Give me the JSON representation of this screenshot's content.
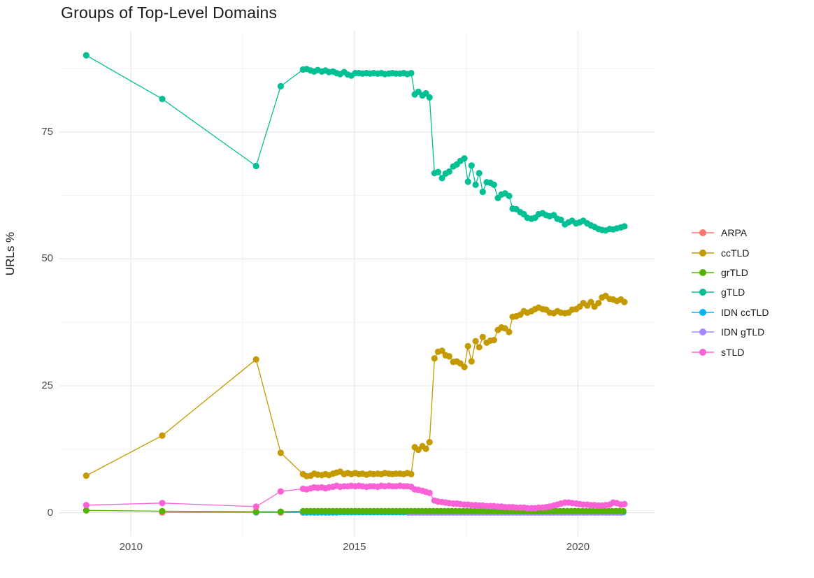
{
  "chart_data": {
    "type": "line",
    "title": "Groups of Top-Level Domains",
    "xlabel": "",
    "ylabel": "URLs %",
    "xlim": [
      2008.4,
      2021.73
    ],
    "ylim": [
      -4.6,
      94.8
    ],
    "grid": "major+minor",
    "grid_major_color": "#e5e5e5",
    "grid_minor_color": "#f2f2f2",
    "tick_label_color": "#4d4d4d",
    "legend_position": "right",
    "x_ticks": {
      "major": [
        2010,
        2015,
        2020
      ],
      "minor": [
        2012.5,
        2017.5
      ],
      "labels": [
        "2010",
        "2015",
        "2020"
      ]
    },
    "y_ticks": {
      "major": [
        0,
        25,
        50,
        75
      ],
      "minor": [
        12.5,
        37.5,
        62.5,
        87.5
      ],
      "labels": [
        "0",
        "25",
        "50",
        "75"
      ]
    },
    "draw_order": [
      "ARPA",
      "IDN ccTLD",
      "IDN gTLD",
      "grTLD",
      "ccTLD",
      "gTLD",
      "sTLD"
    ],
    "series": [
      {
        "name": "ARPA",
        "color": "#F8766D",
        "points": [
          [
            2010.7,
            0.05
          ],
          [
            2012.8,
            0.05
          ],
          [
            2013.35,
            0.04
          ]
        ],
        "flat": {
          "from": 2013.85,
          "to": 2014.6,
          "step": 0.0833,
          "value": 0.03
        }
      },
      {
        "name": "ccTLD",
        "color": "#C49A00",
        "points": [
          [
            2009,
            7.3
          ],
          [
            2010.7,
            15.2
          ],
          [
            2012.8,
            30.2
          ],
          [
            2013.35,
            11.8
          ],
          [
            2013.85,
            7.6
          ],
          [
            2013.93,
            7.2
          ],
          [
            2014.02,
            7.3
          ],
          [
            2014.1,
            7.7
          ],
          [
            2014.18,
            7.5
          ],
          [
            2014.27,
            7.4
          ],
          [
            2014.35,
            7.6
          ],
          [
            2014.43,
            7.4
          ],
          [
            2014.52,
            7.7
          ],
          [
            2014.6,
            7.9
          ],
          [
            2014.68,
            8.1
          ],
          [
            2014.77,
            7.6
          ],
          [
            2014.85,
            7.8
          ],
          [
            2014.93,
            7.6
          ],
          [
            2015.02,
            7.8
          ],
          [
            2015.1,
            7.6
          ],
          [
            2015.18,
            7.7
          ],
          [
            2015.27,
            7.5
          ],
          [
            2015.35,
            7.7
          ],
          [
            2015.43,
            7.6
          ],
          [
            2015.52,
            7.7
          ],
          [
            2015.6,
            7.6
          ],
          [
            2015.68,
            7.8
          ],
          [
            2015.77,
            7.7
          ],
          [
            2015.85,
            7.6
          ],
          [
            2015.93,
            7.7
          ],
          [
            2016.02,
            7.7
          ],
          [
            2016.1,
            7.6
          ],
          [
            2016.18,
            7.8
          ],
          [
            2016.27,
            7.6
          ],
          [
            2016.35,
            12.9
          ],
          [
            2016.43,
            12.4
          ],
          [
            2016.52,
            13.1
          ],
          [
            2016.6,
            12.6
          ],
          [
            2016.68,
            13.9
          ],
          [
            2016.79,
            30.4
          ],
          [
            2016.87,
            31.7
          ],
          [
            2016.96,
            31.9
          ],
          [
            2017.04,
            31
          ],
          [
            2017.12,
            30.8
          ],
          [
            2017.21,
            29.7
          ],
          [
            2017.29,
            29.8
          ],
          [
            2017.37,
            29.4
          ],
          [
            2017.46,
            28.7
          ],
          [
            2017.54,
            32.8
          ],
          [
            2017.62,
            29.8
          ],
          [
            2017.71,
            33.8
          ],
          [
            2017.79,
            32.6
          ],
          [
            2017.87,
            34.6
          ],
          [
            2017.96,
            33.5
          ],
          [
            2018.04,
            33.9
          ],
          [
            2018.12,
            34
          ],
          [
            2018.21,
            36
          ],
          [
            2018.29,
            36.5
          ],
          [
            2018.37,
            36.3
          ],
          [
            2018.46,
            35.6
          ],
          [
            2018.54,
            38.6
          ],
          [
            2018.62,
            38.7
          ],
          [
            2018.71,
            39
          ],
          [
            2018.79,
            39.7
          ],
          [
            2018.87,
            39.4
          ],
          [
            2018.96,
            39.7
          ],
          [
            2019.04,
            40.1
          ],
          [
            2019.12,
            40.4
          ],
          [
            2019.21,
            40.1
          ],
          [
            2019.29,
            40
          ],
          [
            2019.37,
            39.4
          ],
          [
            2019.46,
            39.3
          ],
          [
            2019.54,
            39.7
          ],
          [
            2019.62,
            39.4
          ],
          [
            2019.71,
            39.3
          ],
          [
            2019.79,
            39.4
          ],
          [
            2019.87,
            40
          ],
          [
            2019.96,
            40.1
          ],
          [
            2020.04,
            40.6
          ],
          [
            2020.12,
            41.3
          ],
          [
            2020.21,
            40.8
          ],
          [
            2020.29,
            41.5
          ],
          [
            2020.37,
            40.6
          ],
          [
            2020.46,
            41.3
          ],
          [
            2020.54,
            42.4
          ],
          [
            2020.62,
            42.7
          ],
          [
            2020.71,
            42.1
          ],
          [
            2020.79,
            42
          ],
          [
            2020.87,
            41.7
          ],
          [
            2020.96,
            42
          ],
          [
            2021.04,
            41.5
          ]
        ]
      },
      {
        "name": "grTLD",
        "color": "#53B400",
        "points": [
          [
            2009,
            0.45
          ],
          [
            2010.7,
            0.3
          ],
          [
            2012.8,
            0.2
          ],
          [
            2013.35,
            0.2
          ]
        ],
        "flat": {
          "from": 2013.85,
          "to": 2021.04,
          "step": 0.0833,
          "value": 0.3
        }
      },
      {
        "name": "gTLD",
        "color": "#00C094",
        "points": [
          [
            2009,
            90.1
          ],
          [
            2010.7,
            81.5
          ],
          [
            2012.8,
            68.3
          ],
          [
            2013.35,
            84
          ],
          [
            2013.85,
            87.3
          ],
          [
            2013.93,
            87.4
          ],
          [
            2014.02,
            87.1
          ],
          [
            2014.1,
            86.9
          ],
          [
            2014.18,
            87.2
          ],
          [
            2014.27,
            86.9
          ],
          [
            2014.35,
            87.1
          ],
          [
            2014.43,
            86.8
          ],
          [
            2014.52,
            86.9
          ],
          [
            2014.6,
            86.6
          ],
          [
            2014.68,
            86.4
          ],
          [
            2014.77,
            86.8
          ],
          [
            2014.85,
            86.3
          ],
          [
            2014.93,
            86.1
          ],
          [
            2015.02,
            86.6
          ],
          [
            2015.1,
            86.6
          ],
          [
            2015.18,
            86.5
          ],
          [
            2015.27,
            86.6
          ],
          [
            2015.35,
            86.5
          ],
          [
            2015.43,
            86.6
          ],
          [
            2015.52,
            86.5
          ],
          [
            2015.6,
            86.6
          ],
          [
            2015.68,
            86.4
          ],
          [
            2015.77,
            86.5
          ],
          [
            2015.85,
            86.6
          ],
          [
            2015.93,
            86.5
          ],
          [
            2016.02,
            86.5
          ],
          [
            2016.1,
            86.6
          ],
          [
            2016.18,
            86.4
          ],
          [
            2016.27,
            86.6
          ],
          [
            2016.35,
            82.4
          ],
          [
            2016.43,
            82.9
          ],
          [
            2016.52,
            82.2
          ],
          [
            2016.6,
            82.6
          ],
          [
            2016.68,
            81.8
          ],
          [
            2016.79,
            66.9
          ],
          [
            2016.87,
            67.1
          ],
          [
            2016.96,
            65.9
          ],
          [
            2017.04,
            66.8
          ],
          [
            2017.12,
            67.2
          ],
          [
            2017.21,
            68.2
          ],
          [
            2017.29,
            68.6
          ],
          [
            2017.37,
            69.3
          ],
          [
            2017.46,
            69.8
          ],
          [
            2017.54,
            65.2
          ],
          [
            2017.62,
            68.4
          ],
          [
            2017.71,
            64.6
          ],
          [
            2017.79,
            66.9
          ],
          [
            2017.87,
            63.2
          ],
          [
            2017.96,
            65.1
          ],
          [
            2018.04,
            65
          ],
          [
            2018.12,
            64.6
          ],
          [
            2018.21,
            62
          ],
          [
            2018.29,
            62.7
          ],
          [
            2018.37,
            62.9
          ],
          [
            2018.46,
            62.4
          ],
          [
            2018.54,
            59.9
          ],
          [
            2018.62,
            59.8
          ],
          [
            2018.71,
            59.2
          ],
          [
            2018.79,
            58.8
          ],
          [
            2018.87,
            58.1
          ],
          [
            2018.96,
            57.9
          ],
          [
            2019.04,
            58.1
          ],
          [
            2019.12,
            58.8
          ],
          [
            2019.21,
            59
          ],
          [
            2019.29,
            58.6
          ],
          [
            2019.37,
            58.4
          ],
          [
            2019.46,
            58.6
          ],
          [
            2019.54,
            57.9
          ],
          [
            2019.62,
            57.7
          ],
          [
            2019.71,
            56.8
          ],
          [
            2019.79,
            57.2
          ],
          [
            2019.87,
            57.5
          ],
          [
            2019.96,
            57
          ],
          [
            2020.04,
            57.2
          ],
          [
            2020.12,
            57.5
          ],
          [
            2020.21,
            57
          ],
          [
            2020.29,
            56.6
          ],
          [
            2020.37,
            56.3
          ],
          [
            2020.46,
            55.9
          ],
          [
            2020.54,
            55.7
          ],
          [
            2020.62,
            55.6
          ],
          [
            2020.71,
            55.9
          ],
          [
            2020.79,
            55.8
          ],
          [
            2020.87,
            56
          ],
          [
            2020.96,
            56.2
          ],
          [
            2021.04,
            56.4
          ]
        ]
      },
      {
        "name": "IDN ccTLD",
        "color": "#00B6EB",
        "points": [
          [
            2012.8,
            0.1
          ]
        ],
        "flat": {
          "from": 2013.85,
          "to": 2021.04,
          "step": 0.0833,
          "value": 0.1
        }
      },
      {
        "name": "IDN gTLD",
        "color": "#A58AFF",
        "points": [],
        "flat": {
          "from": 2016.21,
          "to": 2021.04,
          "step": 0.0833,
          "value": 0.02
        }
      },
      {
        "name": "sTLD",
        "color": "#FB61D7",
        "points": [
          [
            2009,
            1.5
          ],
          [
            2010.7,
            1.9
          ],
          [
            2012.8,
            1.2
          ],
          [
            2013.35,
            4.2
          ],
          [
            2013.85,
            4.7
          ],
          [
            2013.93,
            4.6
          ],
          [
            2014.02,
            4.8
          ],
          [
            2014.1,
            5
          ],
          [
            2014.18,
            4.9
          ],
          [
            2014.27,
            5
          ],
          [
            2014.35,
            4.8
          ],
          [
            2014.43,
            5
          ],
          [
            2014.52,
            5.1
          ],
          [
            2014.6,
            5.3
          ],
          [
            2014.68,
            5.1
          ],
          [
            2014.77,
            5.2
          ],
          [
            2014.85,
            5.2
          ],
          [
            2014.93,
            5.3
          ],
          [
            2015.02,
            5.2
          ],
          [
            2015.1,
            5.3
          ],
          [
            2015.18,
            5.2
          ],
          [
            2015.27,
            5.1
          ],
          [
            2015.35,
            5.2
          ],
          [
            2015.43,
            5.2
          ],
          [
            2015.52,
            5.1
          ],
          [
            2015.6,
            5.3
          ],
          [
            2015.68,
            5.2
          ],
          [
            2015.77,
            5.3
          ],
          [
            2015.85,
            5.2
          ],
          [
            2015.93,
            5.2
          ],
          [
            2016.02,
            5.3
          ],
          [
            2016.1,
            5.2
          ],
          [
            2016.18,
            5.2
          ],
          [
            2016.27,
            5.1
          ],
          [
            2016.35,
            4.6
          ],
          [
            2016.43,
            4.5
          ],
          [
            2016.52,
            4.3
          ],
          [
            2016.6,
            4.1
          ],
          [
            2016.68,
            3.9
          ],
          [
            2016.79,
            2.4
          ],
          [
            2016.87,
            2.2
          ],
          [
            2016.96,
            2.1
          ],
          [
            2017.04,
            2
          ],
          [
            2017.12,
            1.9
          ],
          [
            2017.21,
            1.8
          ],
          [
            2017.29,
            1.8
          ],
          [
            2017.37,
            1.7
          ],
          [
            2017.46,
            1.6
          ],
          [
            2017.54,
            1.6
          ],
          [
            2017.62,
            1.5
          ],
          [
            2017.71,
            1.5
          ],
          [
            2017.79,
            1.4
          ],
          [
            2017.87,
            1.4
          ],
          [
            2017.96,
            1.3
          ],
          [
            2018.04,
            1.3
          ],
          [
            2018.12,
            1.3
          ],
          [
            2018.21,
            1.2
          ],
          [
            2018.29,
            1.2
          ],
          [
            2018.37,
            1.1
          ],
          [
            2018.46,
            1.1
          ],
          [
            2018.54,
            1.1
          ],
          [
            2018.62,
            1
          ],
          [
            2018.71,
            1
          ],
          [
            2018.79,
            1
          ],
          [
            2018.87,
            0.9
          ],
          [
            2018.96,
            0.9
          ],
          [
            2019.04,
            0.9
          ],
          [
            2019.12,
            1
          ],
          [
            2019.21,
            1
          ],
          [
            2019.29,
            1.1
          ],
          [
            2019.37,
            1.2
          ],
          [
            2019.46,
            1.4
          ],
          [
            2019.54,
            1.6
          ],
          [
            2019.62,
            1.8
          ],
          [
            2019.71,
            2
          ],
          [
            2019.79,
            2
          ],
          [
            2019.87,
            1.9
          ],
          [
            2019.96,
            1.8
          ],
          [
            2020.04,
            1.7
          ],
          [
            2020.12,
            1.6
          ],
          [
            2020.21,
            1.6
          ],
          [
            2020.29,
            1.5
          ],
          [
            2020.37,
            1.5
          ],
          [
            2020.46,
            1.4
          ],
          [
            2020.54,
            1.4
          ],
          [
            2020.62,
            1.5
          ],
          [
            2020.71,
            1.6
          ],
          [
            2020.79,
            2
          ],
          [
            2020.87,
            1.9
          ],
          [
            2020.96,
            1.6
          ],
          [
            2021.04,
            1.7
          ]
        ]
      }
    ]
  }
}
